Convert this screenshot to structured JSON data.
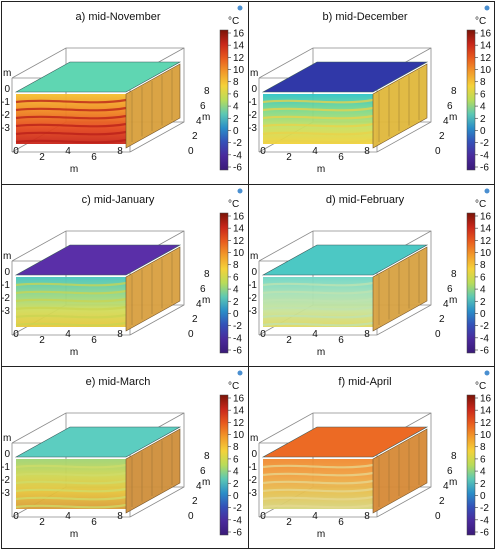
{
  "panels": [
    {
      "title": "a) mid-November",
      "top": "#5fd6b2",
      "front": [
        "#f5c030",
        "#f08a22",
        "#e54a1e",
        "#c8251a"
      ],
      "right": "#d9a03c",
      "streaks": "#b81e18"
    },
    {
      "title": "b) mid-December",
      "top": "#3038a8",
      "front": [
        "#2ec4c8",
        "#7fd98a",
        "#c9e060",
        "#f2d23a"
      ],
      "right": "#e0b83c",
      "streaks": "#e9d24a"
    },
    {
      "title": "c) mid-January",
      "top": "#5a2fa8",
      "front": [
        "#46c5c0",
        "#8fd68a",
        "#d1dc5a",
        "#e8c73a"
      ],
      "right": "#d9a040",
      "streaks": "#c9d452"
    },
    {
      "title": "d) mid-February",
      "top": "#4cc8c4",
      "front": [
        "#6fd6c6",
        "#a6e0b6",
        "#c7e39a",
        "#e0d860"
      ],
      "right": "#d8a242",
      "streaks": "#bfe3b0"
    },
    {
      "title": "e) mid-March",
      "top": "#5ccdc0",
      "front": [
        "#9fd474",
        "#cfd652",
        "#e6c23a",
        "#d89a38"
      ],
      "right": "#cf8f3a",
      "streaks": "#cfdc6a"
    },
    {
      "title": "f) mid-April",
      "top": "#ec6a24",
      "front": [
        "#f08a30",
        "#f0a040",
        "#e6c050",
        "#d6d680"
      ],
      "right": "#d68a36",
      "streaks": "#e6d890"
    }
  ],
  "axis": {
    "unit": "m",
    "z_ticks": [
      "0",
      "-1",
      "-2",
      "-3"
    ],
    "x_ticks": [
      "0",
      "2",
      "4",
      "6",
      "8"
    ],
    "y_ticks": [
      "0",
      "2",
      "4",
      "6",
      "8"
    ]
  },
  "colorbar": {
    "unit": "°C",
    "ticks": [
      "16",
      "14",
      "12",
      "10",
      "8",
      "6",
      "4",
      "2",
      "0",
      "-2",
      "-4",
      "-6"
    ],
    "stops": [
      "#7a1408",
      "#c8261a",
      "#e85a1e",
      "#f29a2a",
      "#f4d23a",
      "#b8dc5a",
      "#5cc8b4",
      "#2a8ec8",
      "#3450b8",
      "#4a2a9c",
      "#3a1a78"
    ]
  }
}
